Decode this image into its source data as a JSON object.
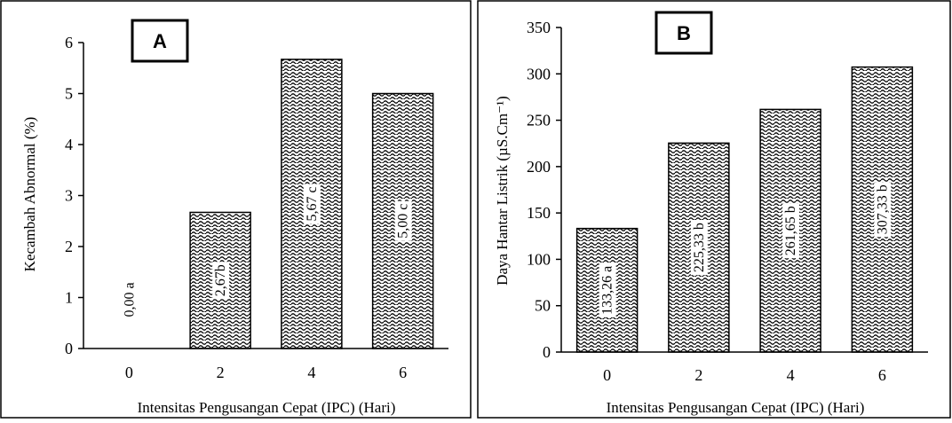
{
  "chart_data": [
    {
      "type": "bar",
      "panel": "A",
      "categories": [
        "0",
        "2",
        "4",
        "6"
      ],
      "values": [
        0.0,
        2.67,
        5.67,
        5.0
      ],
      "bar_labels": [
        "0,00 a",
        "2,67b",
        "5,67 c",
        "5,00 c"
      ],
      "yticks": [
        "0",
        "1",
        "2",
        "3",
        "4",
        "5",
        "6"
      ],
      "ylim": [
        0,
        6
      ],
      "xlabel": "Intensitas Pengusangan Cepat (IPC) (Hari)",
      "ylabel": "Kecambah Abnormal (%)",
      "grid": false
    },
    {
      "type": "bar",
      "panel": "B",
      "categories": [
        "0",
        "2",
        "4",
        "6"
      ],
      "values": [
        133.26,
        225.33,
        261.65,
        307.33
      ],
      "bar_labels": [
        "133,26 a",
        "225,33 b",
        "261,65 b",
        "307,33 b"
      ],
      "yticks": [
        "0",
        "50",
        "100",
        "150",
        "200",
        "250",
        "300",
        "350"
      ],
      "ylim": [
        0,
        350
      ],
      "xlabel": "Intensitas Pengusangan Cepat (IPC) (Hari)",
      "ylabel": "Daya Hantar Listrik (µS.Cm⁻¹)",
      "grid": false
    }
  ]
}
